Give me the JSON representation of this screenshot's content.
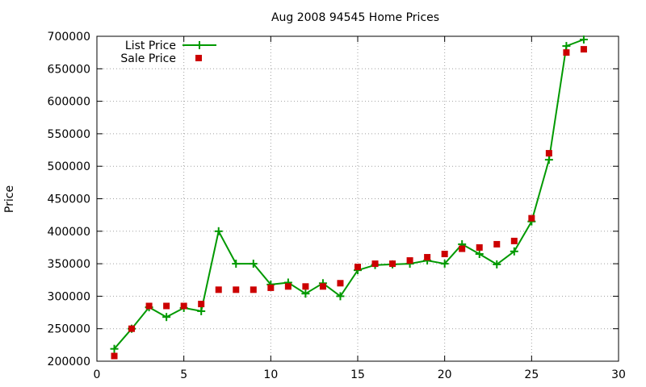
{
  "chart_data": {
    "type": "line",
    "title": "Aug 2008 94545 Home Prices",
    "xlabel": "",
    "ylabel": "Price",
    "xlim": [
      0,
      30
    ],
    "ylim": [
      200000,
      700000
    ],
    "x_ticks": [
      0,
      5,
      10,
      15,
      20,
      25,
      30
    ],
    "y_ticks": [
      200000,
      250000,
      300000,
      350000,
      400000,
      450000,
      500000,
      550000,
      600000,
      650000,
      700000
    ],
    "grid": true,
    "legend_position": "top-left",
    "x": [
      1,
      2,
      3,
      4,
      5,
      6,
      7,
      8,
      9,
      10,
      11,
      12,
      13,
      14,
      15,
      16,
      17,
      18,
      19,
      20,
      21,
      22,
      23,
      24,
      25,
      26,
      27,
      28
    ],
    "series": [
      {
        "name": "List Price",
        "style": "line-with-plus-markers",
        "color": "#009900",
        "values": [
          219000,
          250000,
          283000,
          268000,
          282000,
          277000,
          400000,
          350000,
          350000,
          318000,
          321000,
          304000,
          320000,
          300000,
          340000,
          348000,
          349000,
          350000,
          355000,
          350000,
          380000,
          365000,
          349000,
          369000,
          415000,
          510000,
          685000,
          695000
        ]
      },
      {
        "name": "Sale Price",
        "style": "square-markers",
        "color": "#cc0000",
        "values": [
          208000,
          250000,
          285000,
          285000,
          285000,
          288000,
          310000,
          310000,
          310000,
          313000,
          315000,
          315000,
          315000,
          320000,
          345000,
          350000,
          350000,
          355000,
          360000,
          365000,
          373000,
          375000,
          380000,
          385000,
          420000,
          520000,
          675000,
          680000
        ]
      }
    ]
  }
}
